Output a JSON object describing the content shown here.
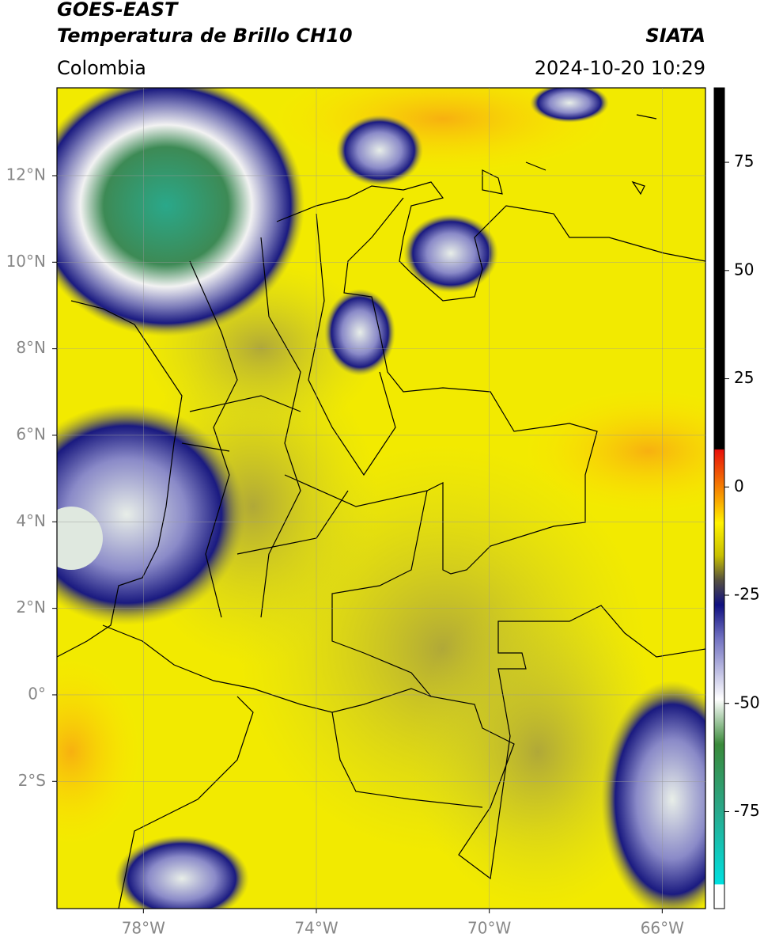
{
  "header": {
    "title": "GOES-EAST",
    "subtitle": "Temperatura de Brillo CH10",
    "source": "SIATA",
    "region": "Colombia",
    "timestamp": "2024-10-20 10:29"
  },
  "map": {
    "lonlim": [
      -80,
      -65
    ],
    "latlim": [
      -4.94,
      14.03
    ],
    "lonticks": [
      {
        "value": -78,
        "label": "78°W"
      },
      {
        "value": -74,
        "label": "74°W"
      },
      {
        "value": -70,
        "label": "70°W"
      },
      {
        "value": -66,
        "label": "66°W"
      }
    ],
    "latticks": [
      {
        "value": 12,
        "label": "12°N"
      },
      {
        "value": 10,
        "label": "10°N"
      },
      {
        "value": 8,
        "label": "8°N"
      },
      {
        "value": 6,
        "label": "6°N"
      },
      {
        "value": 4,
        "label": "4°N"
      },
      {
        "value": 2,
        "label": "2°N"
      },
      {
        "value": 0,
        "label": "0°"
      },
      {
        "value": -2,
        "label": "2°S"
      }
    ],
    "grid": true
  },
  "colorbar": {
    "lim": [
      -97.4,
      92.2
    ],
    "ticks": [
      75,
      50,
      25,
      0,
      -25,
      -50,
      -75
    ]
  }
}
